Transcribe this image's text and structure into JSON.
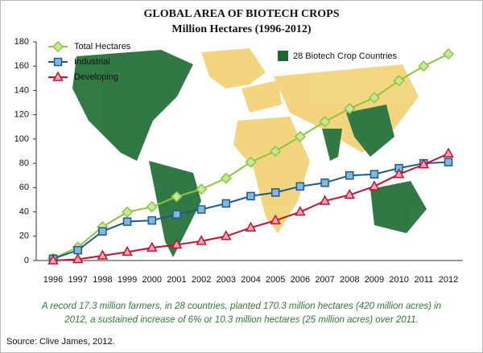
{
  "chart_data": {
    "type": "line",
    "title": "GLOBAL AREA OF BIOTECH CROPS",
    "subtitle": "Million Hectares (1996-2012)",
    "categories": [
      "1996",
      "1997",
      "1998",
      "1999",
      "2000",
      "2001",
      "2002",
      "2003",
      "2004",
      "2005",
      "2006",
      "2007",
      "2008",
      "2009",
      "2010",
      "2011",
      "2012"
    ],
    "series": [
      {
        "name": "Total Hectares",
        "color": "#8cc63f",
        "marker": "diamond",
        "values": [
          1.7,
          11,
          27.8,
          39.9,
          44.2,
          52.6,
          58.7,
          67.7,
          81,
          90,
          102,
          114.3,
          125,
          134,
          148,
          160,
          170
        ]
      },
      {
        "name": "Industrial",
        "color": "#1f5a8a",
        "marker": "square",
        "values": [
          1.5,
          8.5,
          24,
          32,
          33,
          38,
          42,
          47,
          53,
          56,
          61,
          64,
          70,
          71,
          76,
          80,
          81
        ]
      },
      {
        "name": "Developing",
        "color": "#c8102e",
        "marker": "triangle",
        "values": [
          0,
          1,
          4,
          7,
          10.5,
          13,
          16,
          20,
          27,
          33,
          40,
          49,
          54,
          61,
          71,
          79,
          88
        ]
      }
    ],
    "ylim": [
      0,
      180
    ],
    "yticks": [
      0,
      20,
      40,
      60,
      80,
      100,
      120,
      140,
      160,
      180
    ],
    "annotation": {
      "text": "28 Biotech Crop Countries",
      "color": "#1b6b30"
    },
    "caption": [
      "A record 17.3 million farmers, in 28 countries, planted 170.3 million hectares (420 million acres) in",
      "2012, a sustained increase of 6% or 10.3 million hectares (25 million acres) over 2011."
    ],
    "source": "Source: Clive James, 2012."
  }
}
